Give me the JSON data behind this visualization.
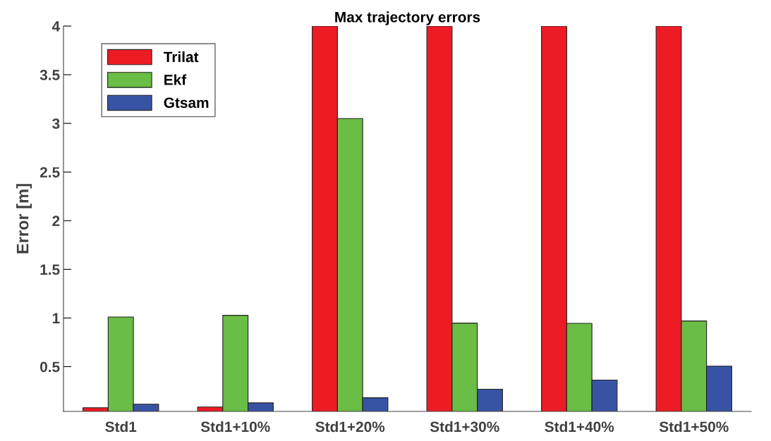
{
  "chart_data": {
    "type": "bar",
    "title": "Max trajectory errors",
    "ylabel": "Error [m]",
    "categories": [
      "Std1",
      "Std1+10%",
      "Std1+20%",
      "Std1+30%",
      "Std1+40%",
      "Std1+50%"
    ],
    "series": [
      {
        "name": "Trilat",
        "color": "#ed1c24",
        "values": [
          0.078,
          0.085,
          4,
          4,
          4,
          4
        ]
      },
      {
        "name": "Ekf",
        "color": "#6abd45",
        "values": [
          1.01,
          1.027,
          3.05,
          0.948,
          0.945,
          0.969
        ]
      },
      {
        "name": "Gtsam",
        "color": "#3953a4",
        "values": [
          0.114,
          0.128,
          0.18,
          0.268,
          0.362,
          0.505
        ]
      }
    ],
    "ylim": [
      0.04,
      4
    ],
    "yticks": [
      {
        "value": 0.5,
        "label": "0.5"
      },
      1,
      {
        "value": 1.5,
        "label": "1.5"
      },
      2,
      {
        "value": 2.5,
        "label": "2.5"
      },
      3,
      {
        "value": 3.5,
        "label": "3.5"
      },
      4
    ],
    "grid": false,
    "legend": "top left"
  }
}
